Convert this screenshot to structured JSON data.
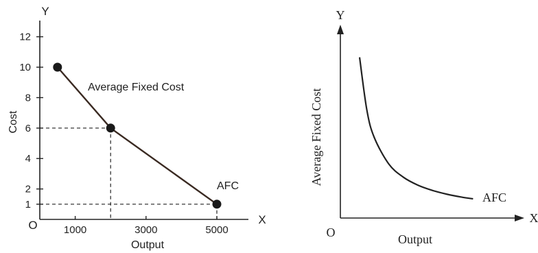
{
  "chart_data": [
    {
      "type": "line",
      "title": "",
      "annotation": "Average Fixed Cost",
      "xlabel": "Output",
      "ylabel": "Cost",
      "x_axis_letter": "X",
      "y_axis_letter": "Y",
      "origin_label": "O",
      "xlim": [
        0,
        5500
      ],
      "ylim": [
        0,
        13
      ],
      "x_ticks": [
        {
          "value": 1000,
          "label": "1000"
        },
        {
          "value": 3000,
          "label": "3000"
        },
        {
          "value": 5000,
          "label": "5000"
        }
      ],
      "y_ticks": [
        {
          "value": 1,
          "label": "1"
        },
        {
          "value": 2,
          "label": "2"
        },
        {
          "value": 4,
          "label": "4"
        },
        {
          "value": 6,
          "label": "6"
        },
        {
          "value": 8,
          "label": "8"
        },
        {
          "value": 10,
          "label": "10"
        },
        {
          "value": 12,
          "label": "12"
        }
      ],
      "series": [
        {
          "name": "AFC",
          "x": [
            500,
            2000,
            5000
          ],
          "y": [
            10,
            6,
            1
          ]
        }
      ],
      "guides": [
        {
          "x": 2000,
          "y": 6
        },
        {
          "x": 5000,
          "y": 1
        }
      ],
      "grid": false,
      "colors": {
        "line": "#3a2a22",
        "marker": "#1a1a1a",
        "axis": "#222222"
      }
    },
    {
      "type": "line",
      "title": "",
      "xlabel": "Output",
      "ylabel": "Average Fixed Cost",
      "x_axis_letter": "X",
      "y_axis_letter": "Y",
      "origin_label": "O",
      "series": [
        {
          "name": "AFC",
          "shape": "rectangular hyperbola",
          "x": [
            1,
            1.5,
            2,
            3,
            4,
            5,
            6,
            7,
            8,
            8.8
          ],
          "y": [
            10,
            6.7,
            5,
            3.33,
            2.5,
            2,
            1.67,
            1.43,
            1.25,
            1.14
          ]
        }
      ],
      "grid": false,
      "colors": {
        "line": "#222222",
        "axis": "#222222"
      }
    }
  ]
}
